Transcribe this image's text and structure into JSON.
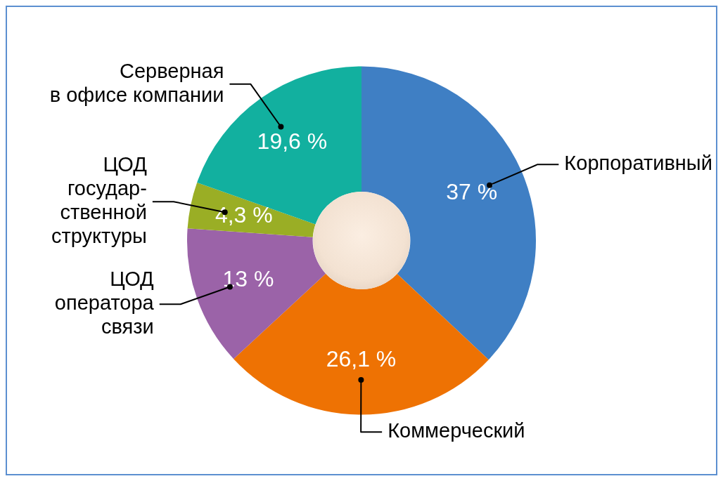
{
  "chart_data": {
    "type": "donut",
    "categories": [
      "Корпоративный",
      "Коммерческий",
      "ЦОД\nоператора\nсвязи",
      "ЦОД\nгосудар-\nственной\nструктуры",
      "Серверная\nв офисе компании"
    ],
    "values": [
      37,
      26.1,
      13,
      4.3,
      19.6
    ],
    "colors": [
      "#3f7fc4",
      "#ee7203",
      "#9b63a8",
      "#9aae25",
      "#12b09f"
    ],
    "value_labels": [
      "37 %",
      "26,1 %",
      "13 %",
      "4,3 %",
      "19,6 %"
    ],
    "legend": false
  }
}
